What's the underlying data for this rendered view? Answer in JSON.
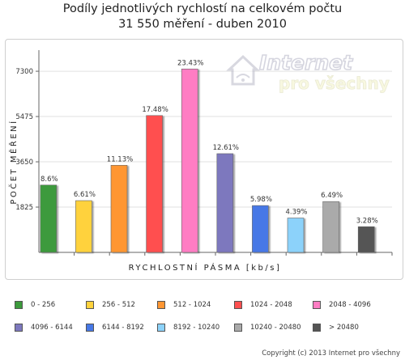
{
  "title_line1": "Podíly jednotlivých rychlostí na celkovém počtu",
  "title_line2": "31 550 měření - duben 2010",
  "watermark": {
    "word1": "Internet",
    "word2": "pro všechny"
  },
  "copyright": "Copyright (c) 2013 Internet pro všechny",
  "chart_data": {
    "type": "bar",
    "title": "Podíly jednotlivých rychlostí na celkovém počtu 31 550 měření - duben 2010",
    "xlabel": "RYCHLOSTNÍ PÁSMA [kb/s]",
    "ylabel": "POČET MĚŘENÍ",
    "yticks": [
      1825,
      3650,
      5475,
      7300
    ],
    "ylim": [
      0,
      8150
    ],
    "grid": "horizontal",
    "categories": [
      "0 - 256",
      "256 - 512",
      "512 - 1024",
      "1024 - 2048",
      "2048 - 4096",
      "4096 - 6144",
      "6144 - 8192",
      "8192 - 10240",
      "10240 - 20480",
      "> 20480"
    ],
    "values": [
      2713,
      2085,
      3511,
      5515,
      7392,
      3978,
      1887,
      1385,
      2048,
      1035
    ],
    "labels": [
      "8.6%",
      "6.61%",
      "11.13%",
      "17.48%",
      "23.43%",
      "12.61%",
      "5.98%",
      "4.39%",
      "6.49%",
      "3.28%"
    ],
    "colors": [
      "#3c9a3c",
      "#ffd23c",
      "#ff9632",
      "#ff5050",
      "#ff7dc3",
      "#7d78be",
      "#4678e6",
      "#8cd2fa",
      "#aaaaaa",
      "#555555"
    ]
  }
}
